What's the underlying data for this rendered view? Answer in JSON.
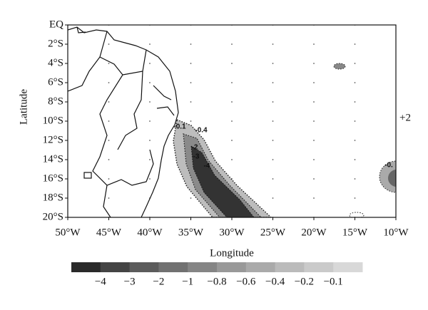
{
  "map": {
    "y_axis_title": "Latitude",
    "x_axis_title": "Longitude",
    "lat_labels": [
      "EQ",
      "2°S",
      "4°S",
      "6°S",
      "8°S",
      "10°S",
      "12°S",
      "14°S",
      "16°S",
      "18°S",
      "20°S"
    ],
    "lon_labels": [
      "50°W",
      "45°W",
      "40°W",
      "35°W",
      "30°W",
      "25°W",
      "20°W",
      "15°W",
      "10°W"
    ],
    "contour_labels": [
      "-0.1",
      "-0.4",
      "-2",
      "-3",
      "-4",
      "-0.",
      "+2"
    ],
    "colorbar": {
      "labels": [
        "−4",
        "−3",
        "−2",
        "−1",
        "−0.8",
        "−0.6",
        "−0.4",
        "−0.2",
        "−0.1"
      ],
      "colors": [
        "#2a2a2a",
        "#444444",
        "#5c5c5c",
        "#717171",
        "#858585",
        "#999999",
        "#aaaaaa",
        "#bbbbbb",
        "#cacaca",
        "#d8d8d8"
      ]
    }
  }
}
